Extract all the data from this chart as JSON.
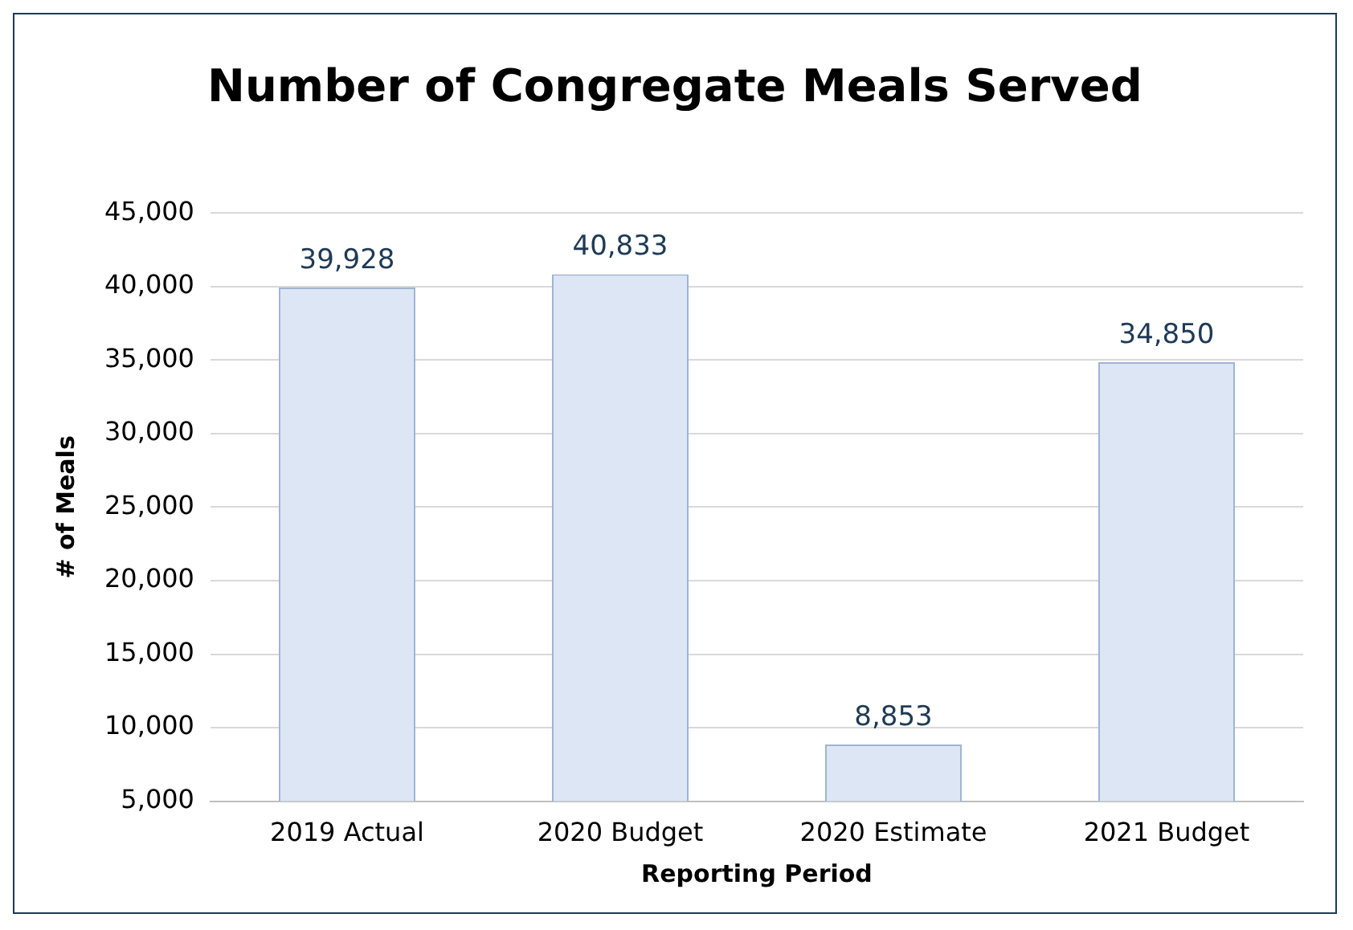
{
  "chart_data": {
    "type": "bar",
    "title": "Number of Congregate Meals Served",
    "xlabel": "Reporting Period",
    "ylabel": "# of Meals",
    "categories": [
      "2019 Actual",
      "2020 Budget",
      "2020 Estimate",
      "2021 Budget"
    ],
    "values": [
      39928,
      40833,
      8853,
      34850
    ],
    "color": "#dce6f5",
    "value_labels": [
      "39,928",
      "40,833",
      "8,853",
      "34,850"
    ],
    "ylim": [
      5000,
      45000
    ],
    "yticks": [
      {
        "value": 5000,
        "label": "5,000"
      },
      {
        "value": 10000,
        "label": "10,000"
      },
      {
        "value": 15000,
        "label": "15,000"
      },
      {
        "value": 20000,
        "label": "20,000"
      },
      {
        "value": 25000,
        "label": "25,000"
      },
      {
        "value": 30000,
        "label": "30,000"
      },
      {
        "value": 35000,
        "label": "35,000"
      },
      {
        "value": 40000,
        "label": "40,000"
      },
      {
        "value": 45000,
        "label": "45,000"
      }
    ],
    "grid": "y",
    "legend": false
  }
}
